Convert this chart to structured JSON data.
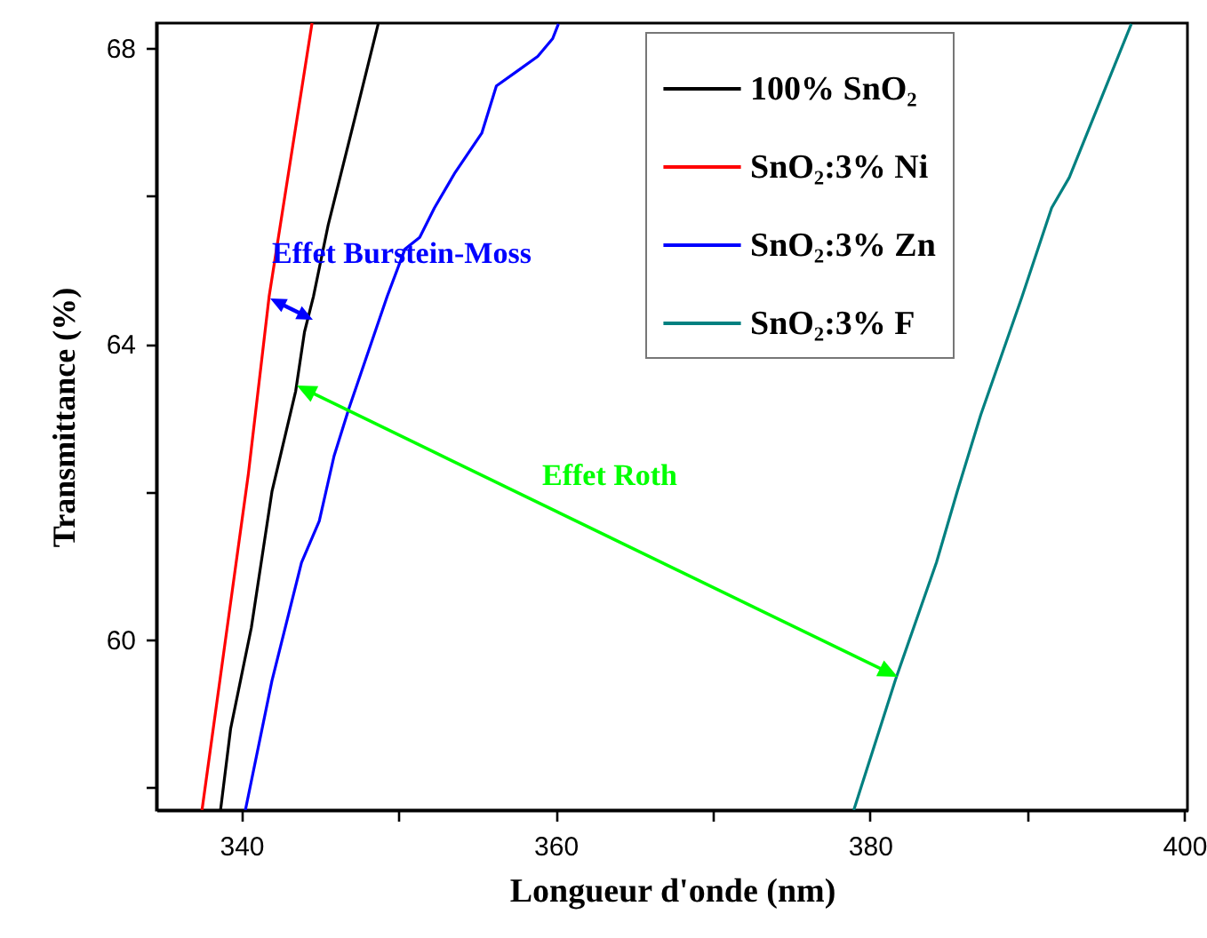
{
  "chart_data": {
    "type": "line",
    "xlabel": "Longueur d'onde (nm)",
    "ylabel": "Transmittance (%)",
    "xlim": [
      334.6,
      400.2
    ],
    "ylim": [
      57.69,
      68.34
    ],
    "xticks": [
      340,
      {
        "value": 350,
        "label": null
      },
      360,
      {
        "value": 370,
        "label": null
      },
      380,
      {
        "value": 390,
        "label": null
      },
      400
    ],
    "yticks": [
      {
        "value": 58,
        "label": null
      },
      60,
      {
        "value": 62,
        "label": null
      },
      64,
      {
        "value": 66,
        "label": null
      },
      68
    ],
    "legend": "top right",
    "grid": false,
    "line_style": "solid",
    "annotations": [
      "Effet Burstein-Moss",
      "Effet Roth"
    ],
    "series": [
      {
        "name": "100% SnO₂",
        "color": "#000000",
        "x": [
          338.68,
          339.32,
          340.64,
          341.95,
          343.46,
          344.02,
          344.59,
          345.52,
          347.22,
          348.71
        ],
        "values": [
          57.69,
          58.79,
          60.16,
          62.0,
          63.36,
          64.16,
          64.64,
          65.6,
          67.05,
          68.33
        ]
      },
      {
        "name": "SnO₂:3% Ni",
        "color": "#ff0000",
        "x": [
          337.5,
          340.45,
          341.77,
          344.5
        ],
        "values": [
          57.69,
          62.24,
          64.64,
          68.34
        ]
      },
      {
        "name": "SnO₂:3% Zn",
        "color": "#0000ff",
        "x": [
          340.26,
          341.95,
          343.83,
          344.96,
          345.9,
          346.84,
          349.28,
          350.41,
          351.35,
          352.29,
          353.61,
          355.3,
          356.23,
          357.55,
          358.86,
          359.81,
          360.18
        ],
        "values": [
          57.69,
          59.44,
          61.04,
          61.6,
          62.48,
          63.12,
          64.64,
          65.28,
          65.44,
          65.84,
          66.32,
          66.85,
          67.49,
          67.69,
          67.89,
          68.13,
          68.33
        ]
      },
      {
        "name": "SnO₂:3% F",
        "color": "#008080",
        "x": [
          378.97,
          381.6,
          384.23,
          385.55,
          387.05,
          389.68,
          391.56,
          392.68,
          394.94,
          396.63
        ],
        "values": [
          57.69,
          59.44,
          61.04,
          62.0,
          63.04,
          64.64,
          65.84,
          66.25,
          67.44,
          68.33
        ]
      }
    ]
  }
}
